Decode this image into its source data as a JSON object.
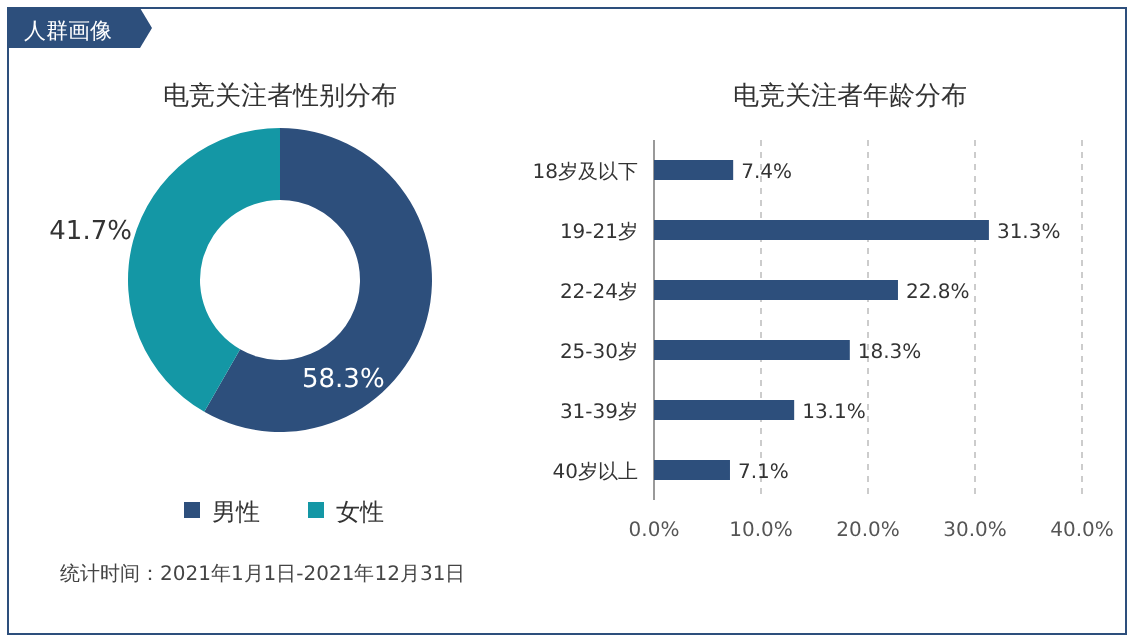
{
  "chart_data": [
    {
      "type": "donut",
      "title": "电竞关注者性别分布",
      "categories": [
        "男性",
        "女性"
      ],
      "values": [
        58.3,
        41.7
      ],
      "colors": [
        "#2d4f7c",
        "#1497a5"
      ],
      "value_labels": [
        "58.3%",
        "41.7%"
      ],
      "legend": "bottom",
      "annotations": [
        "人群画像",
        "统计时间：2021年1月1日-2021年12月31日"
      ]
    },
    {
      "type": "bar",
      "orientation": "horizontal",
      "title": "电竞关注者年龄分布",
      "categories": [
        "18岁及以下",
        "19-21岁",
        "22-24岁",
        "25-30岁",
        "31-39岁",
        "40岁以上"
      ],
      "values": [
        7.4,
        31.3,
        22.8,
        18.3,
        13.1,
        7.1
      ],
      "value_labels": [
        "7.4%",
        "31.3%",
        "22.8%",
        "18.3%",
        "13.1%",
        "7.1%"
      ],
      "color": "#2d4f7c",
      "xlim": [
        0,
        40
      ],
      "xticks": [
        {
          "value": 0,
          "label": "0.0%"
        },
        {
          "value": 10,
          "label": "10.0%"
        },
        {
          "value": 20,
          "label": "20.0%"
        },
        {
          "value": 30,
          "label": "30.0%"
        },
        {
          "value": 40,
          "label": "40.0%"
        }
      ],
      "grid": "x"
    }
  ]
}
